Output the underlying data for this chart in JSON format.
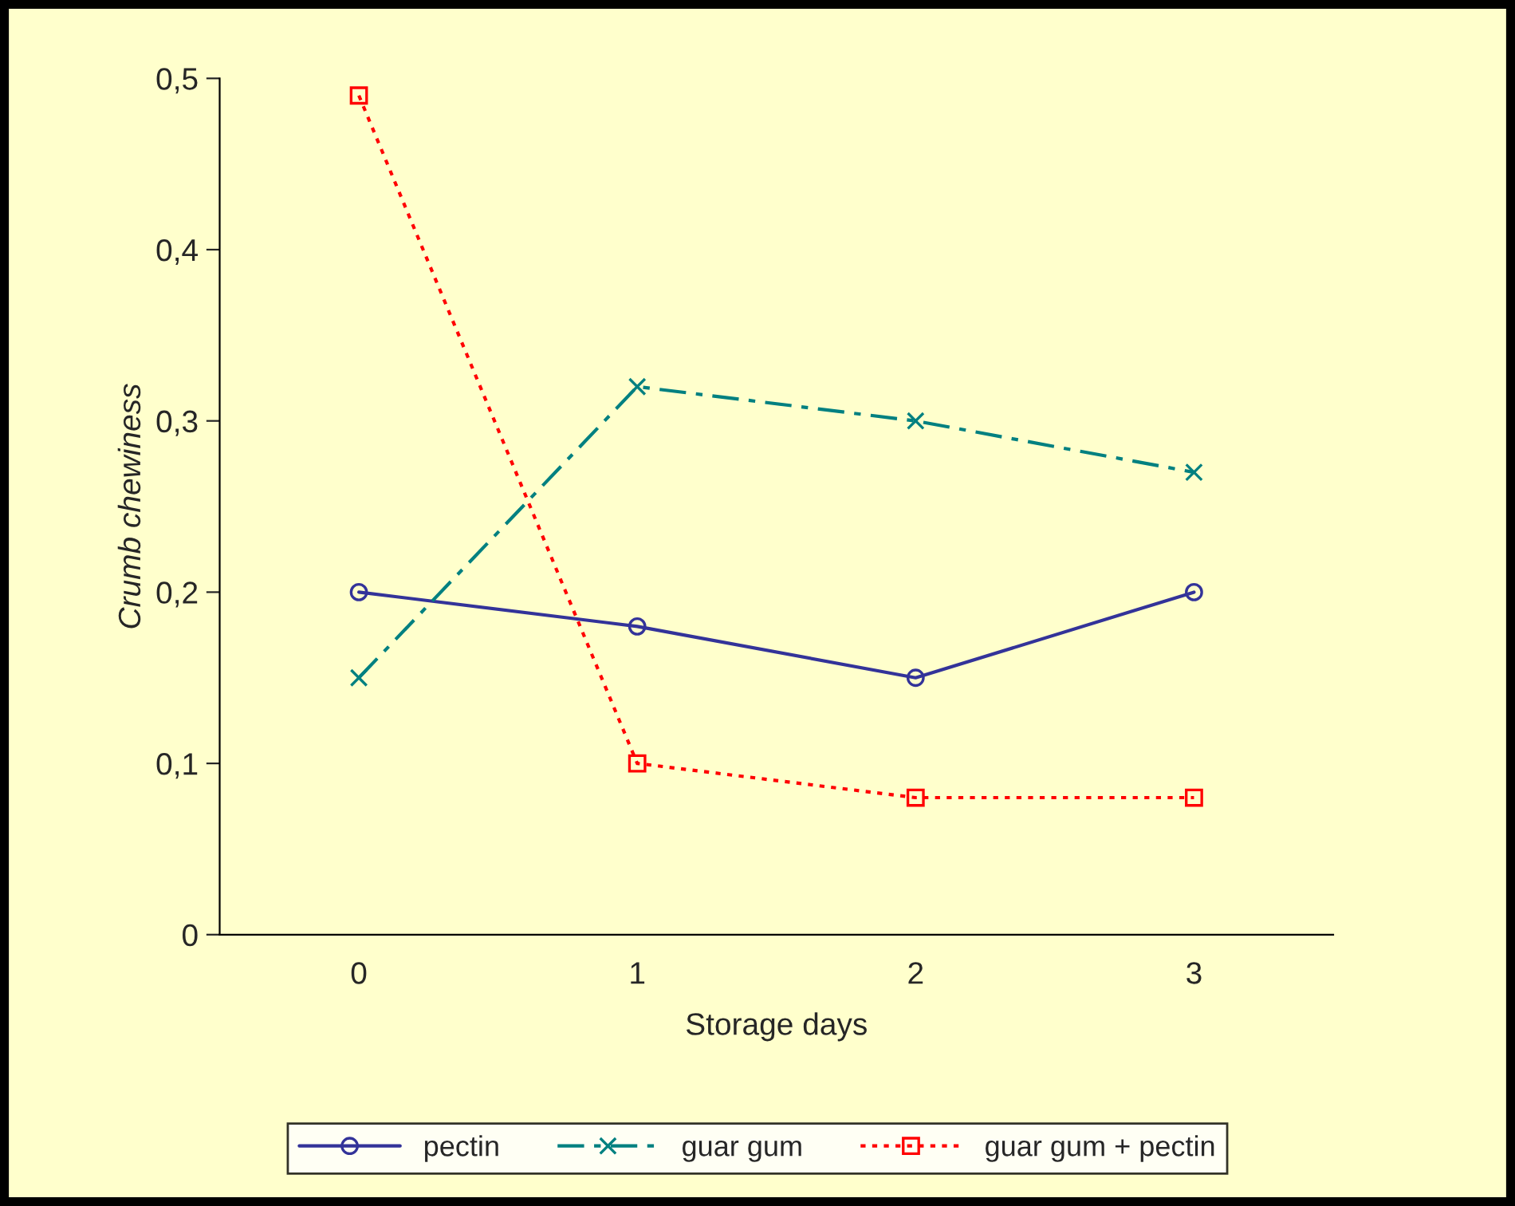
{
  "chart_data": {
    "type": "line",
    "xlabel": "Storage days",
    "ylabel": "Crumb chewiness",
    "categories": [
      "0",
      "1",
      "2",
      "3"
    ],
    "series": [
      {
        "name": "pectin",
        "color": "#333399",
        "values": [
          0.2,
          0.18,
          0.15,
          0.2
        ],
        "marker": "circle",
        "line_style": "solid"
      },
      {
        "name": "guar gum",
        "color": "#008080",
        "values": [
          0.15,
          0.32,
          0.3,
          0.27
        ],
        "marker": "cross",
        "line_style": "dashed"
      },
      {
        "name": "guar gum + pectin",
        "color": "#ff0000",
        "values": [
          0.49,
          0.1,
          0.08,
          0.08
        ],
        "marker": "square",
        "line_style": "dotted"
      }
    ],
    "ylim": [
      0,
      0.5
    ],
    "yticks": [
      0,
      {
        "value": 0.1,
        "label": "0,1"
      },
      {
        "value": 0.2,
        "label": "0,2"
      },
      {
        "value": 0.3,
        "label": "0,3"
      },
      {
        "value": 0.4,
        "label": "0,4"
      },
      {
        "value": 0.5,
        "label": "0,5"
      }
    ],
    "grid": false,
    "legend": "bottom"
  }
}
